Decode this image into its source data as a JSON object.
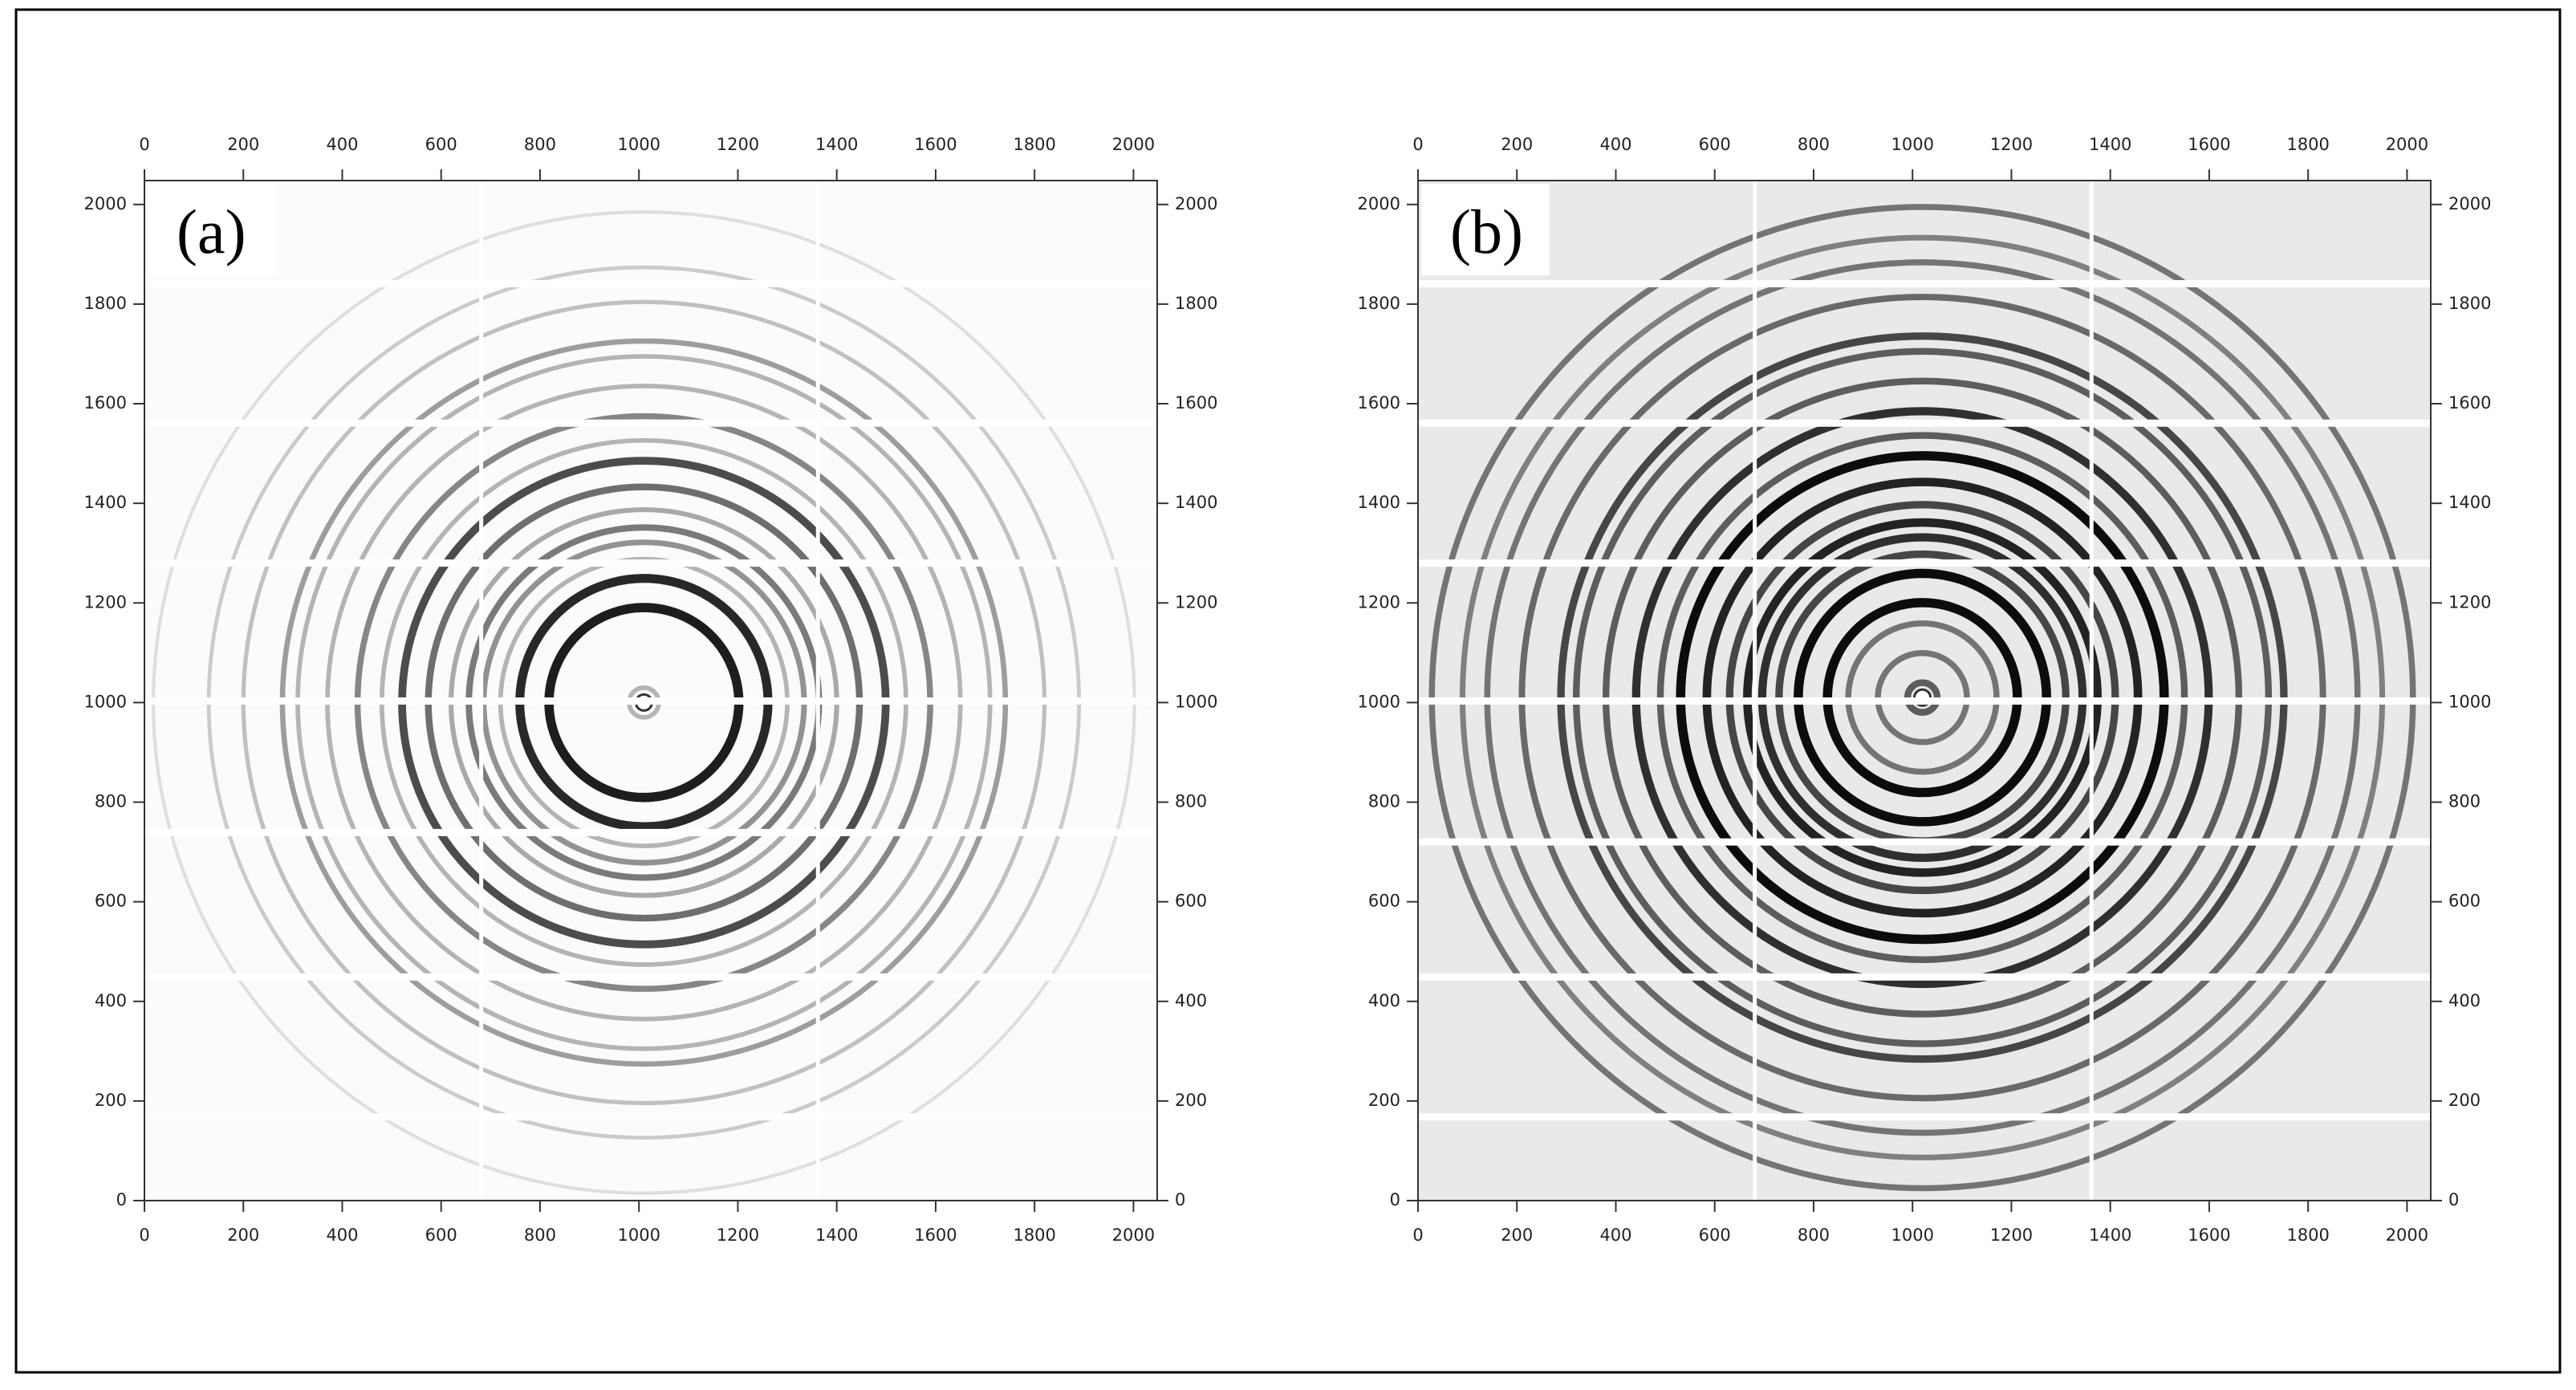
{
  "chart_data": [
    {
      "type": "image",
      "label": "(a)",
      "background": "#fbfbfb",
      "ring_color": "#111111",
      "xlim": [
        0,
        2048
      ],
      "ylim": [
        0,
        2048
      ],
      "xticks": [
        0,
        200,
        400,
        600,
        800,
        1000,
        1200,
        1400,
        1600,
        1800,
        2000
      ],
      "yticks": [
        0,
        200,
        400,
        600,
        800,
        1000,
        1200,
        1400,
        1600,
        1800,
        2000
      ],
      "center": [
        1010,
        1000
      ],
      "ring_radii": [
        30,
        192,
        251,
        290,
        324,
        354,
        390,
        436,
        489,
        530,
        579,
        640,
        700,
        731,
        810,
        880,
        992
      ],
      "ring_intensity": [
        0.3,
        0.95,
        0.9,
        0.3,
        0.45,
        0.55,
        0.35,
        0.6,
        0.75,
        0.3,
        0.5,
        0.3,
        0.3,
        0.4,
        0.25,
        0.2,
        0.12
      ],
      "gaps_y": [
        168,
        449,
        739,
        1003,
        1280,
        1561,
        1841
      ],
      "gaps_x": [
        681,
        1362
      ]
    },
    {
      "type": "image",
      "label": "(b)",
      "background": "#e9e9e9",
      "ring_color": "#000000",
      "xlim": [
        0,
        2048
      ],
      "ylim": [
        0,
        2048
      ],
      "xticks": [
        0,
        200,
        400,
        600,
        800,
        1000,
        1200,
        1400,
        1600,
        1800,
        2000
      ],
      "yticks": [
        0,
        200,
        400,
        600,
        800,
        1000,
        1200,
        1400,
        1600,
        1800,
        2000
      ],
      "center": [
        1020,
        1010
      ],
      "ring_radii": [
        30,
        90,
        150,
        192,
        251,
        290,
        324,
        354,
        390,
        436,
        489,
        530,
        579,
        640,
        700,
        731,
        810,
        880,
        930,
        992
      ],
      "ring_intensity": [
        0.6,
        0.5,
        0.5,
        0.95,
        0.95,
        0.7,
        0.8,
        0.85,
        0.7,
        0.85,
        0.95,
        0.6,
        0.8,
        0.6,
        0.6,
        0.7,
        0.55,
        0.5,
        0.45,
        0.5
      ],
      "gaps_y": [
        168,
        449,
        720,
        1003,
        1280,
        1561,
        1841
      ],
      "gaps_x": [
        681,
        1362
      ]
    }
  ]
}
